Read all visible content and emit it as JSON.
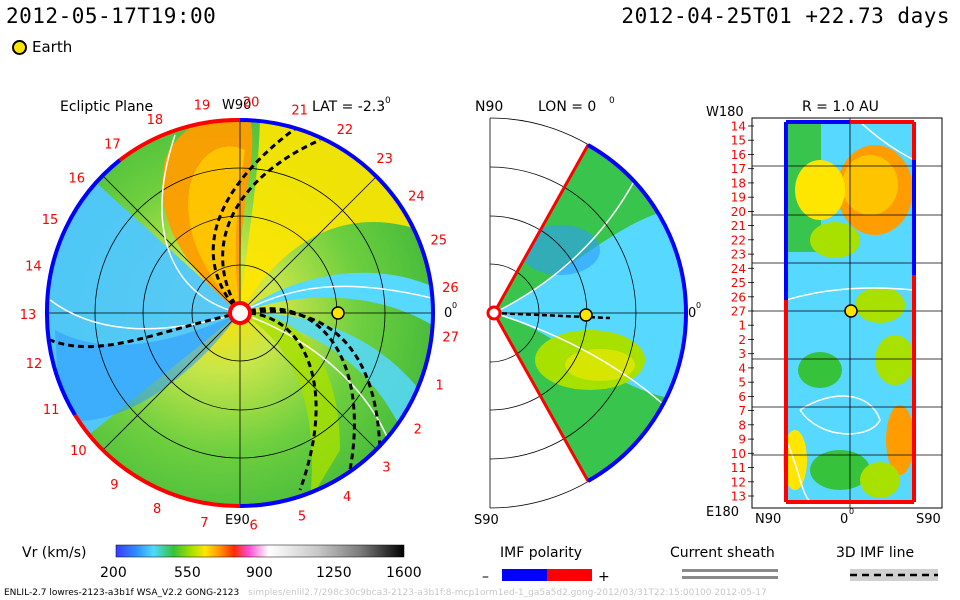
{
  "header": {
    "current_time": "2012-05-17T19:00",
    "start_time_offset": "2012-04-25T01 +22.73 days"
  },
  "legend": {
    "earth_label": "Earth"
  },
  "panels": {
    "ecliptic": {
      "title": "Ecliptic Plane",
      "lat_label": "LAT = -2.3",
      "lat_degree": "0",
      "top_label": "W90",
      "bottom_label": "E90",
      "right_label": "0",
      "right_degree": "0",
      "carrington_labels": [
        "20",
        "21",
        "22",
        "23",
        "24",
        "25",
        "26",
        "27",
        "1",
        "2",
        "3",
        "4",
        "5",
        "6",
        "7",
        "8",
        "9",
        "10",
        "11",
        "12",
        "13",
        "14",
        "15",
        "16",
        "17",
        "18",
        "19"
      ]
    },
    "meridional": {
      "lon_label": "LON = 0",
      "lon_degree": "0",
      "top_label": "N90",
      "bottom_label": "S90",
      "right_label": "0",
      "right_degree": "0"
    },
    "radial": {
      "title": "R = 1.0 AU",
      "top_left_label": "W180",
      "bottom_left_label": "E180",
      "bottom_labels": [
        "N90",
        "0",
        "S90"
      ],
      "bottom_degree": "0",
      "day_labels": [
        "14",
        "15",
        "16",
        "17",
        "18",
        "19",
        "20",
        "21",
        "22",
        "23",
        "24",
        "25",
        "26",
        "27",
        "1",
        "2",
        "3",
        "4",
        "5",
        "6",
        "7",
        "8",
        "9",
        "10",
        "11",
        "12",
        "13"
      ]
    }
  },
  "colorbar": {
    "label": "Vr (km/s)",
    "ticks": [
      "200",
      "550",
      "900",
      "1250",
      "1600"
    ]
  },
  "imf_polarity": {
    "title": "IMF polarity",
    "minus": "–",
    "plus": "+"
  },
  "current_sheath": {
    "title": "Current sheath"
  },
  "imf_line": {
    "title": "3D IMF line"
  },
  "footer": {
    "model_info": "ENLIL-2.7 lowres-2123-a3b1f WSA_V2.2 GONG-2123",
    "run_info": "simples/enlil2.7/298c30c9bca3-2123-a3b1f:8-mcp1orm1ed-1_ga5a5d2.gong-2012/03/31T22:15:00100   2012-05-17"
  },
  "colors": {
    "positive_polarity": "#ff0000",
    "negative_polarity": "#0000ff",
    "earth": "#ffe400"
  }
}
